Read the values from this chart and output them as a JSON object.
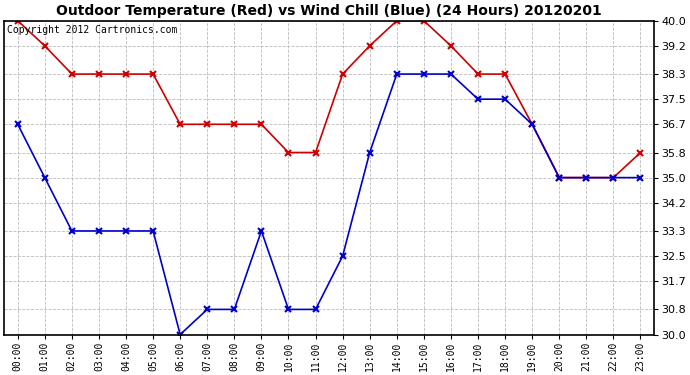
{
  "title": "Outdoor Temperature (Red) vs Wind Chill (Blue) (24 Hours) 20120201",
  "copyright": "Copyright 2012 Cartronics.com",
  "hours": [
    "00:00",
    "01:00",
    "02:00",
    "03:00",
    "04:00",
    "05:00",
    "06:00",
    "07:00",
    "08:00",
    "09:00",
    "10:00",
    "11:00",
    "12:00",
    "13:00",
    "14:00",
    "15:00",
    "16:00",
    "17:00",
    "18:00",
    "19:00",
    "20:00",
    "21:00",
    "22:00",
    "23:00"
  ],
  "temp_red": [
    40.0,
    39.2,
    38.3,
    38.3,
    38.3,
    38.3,
    36.7,
    36.7,
    36.7,
    36.7,
    35.8,
    35.8,
    38.3,
    39.2,
    40.0,
    40.0,
    39.2,
    38.3,
    38.3,
    36.7,
    35.0,
    35.0,
    35.0,
    35.8
  ],
  "wind_chill_blue": [
    36.7,
    35.0,
    33.3,
    33.3,
    33.3,
    33.3,
    30.0,
    30.8,
    30.8,
    33.3,
    30.8,
    30.8,
    32.5,
    35.8,
    38.3,
    38.3,
    38.3,
    37.5,
    37.5,
    36.7,
    35.0,
    35.0,
    35.0,
    35.0
  ],
  "ylim": [
    30.0,
    40.0
  ],
  "yticks": [
    30.0,
    30.8,
    31.7,
    32.5,
    33.3,
    34.2,
    35.0,
    35.8,
    36.7,
    37.5,
    38.3,
    39.2,
    40.0
  ],
  "red_color": "#cc0000",
  "blue_color": "#0000cc",
  "bg_color": "#ffffff",
  "grid_color": "#bbbbbb",
  "title_fontsize": 10,
  "copyright_fontsize": 7,
  "tick_fontsize": 8,
  "xtick_fontsize": 7
}
